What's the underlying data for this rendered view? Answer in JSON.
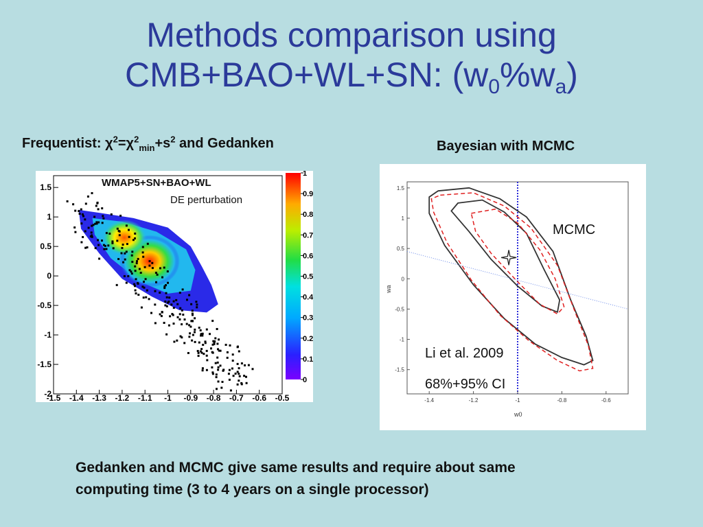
{
  "title": {
    "line1": "Methods comparison using",
    "line2_main": "CMB+BAO+WL+SN: (w",
    "line2_sub0": "0",
    "line2_mid": "%w",
    "line2_suba": "a",
    "line2_end": ")"
  },
  "left_label": {
    "part1": "Frequentist: χ",
    "sup1": "2",
    "part2": "=χ",
    "sup2": "2",
    "sub2": "min",
    "part3": "+s",
    "sup3": "2",
    "part4": " and Gedanken"
  },
  "right_label": "Bayesian with MCMC",
  "conclusion": {
    "line1": "Gedanken and MCMC give same results and require about same",
    "line2": "computing time (3 to 4 years on a single processor)"
  },
  "chart_data": [
    {
      "type": "heatmap",
      "annotations": [
        "WMAP5+SN+BAO+WL",
        "DE perturbation"
      ],
      "x_ticks": [
        "-1.5",
        "-1.4",
        "-1.3",
        "-1.2",
        "-1.1",
        "-1",
        "-0.9",
        "-0.8",
        "-0.7",
        "-0.6",
        "-0.5"
      ],
      "y_ticks": [
        "1.5",
        "1",
        "0.5",
        "0",
        "-0.5",
        "-1",
        "-1.5",
        "-2"
      ],
      "xlim": [
        -1.5,
        -0.5
      ],
      "ylim": [
        -2,
        1.7
      ],
      "colorbar_ticks": [
        "1",
        "0.9",
        "0.8",
        "0.7",
        "0.6",
        "0.5",
        "0.4",
        "0.3",
        "0.2",
        "0.1",
        "0"
      ],
      "colorbar_range": [
        0,
        1
      ],
      "peak": {
        "x": -1.08,
        "y": 0.25
      },
      "secondary_peak": {
        "x": -1.19,
        "y": 0.65
      },
      "scatter_note": "black points scattered around the likelihood region"
    },
    {
      "type": "line",
      "xlabel": "w0",
      "ylabel": "wa",
      "x_ticks": [
        "-1.4",
        "-1.2",
        "-1",
        "-0.8",
        "-0.6"
      ],
      "y_ticks": [
        "1.5",
        "1",
        "0.5",
        "0",
        "-0.5",
        "-1",
        "-1.5"
      ],
      "xlim": [
        -1.5,
        -0.5
      ],
      "ylim": [
        -1.9,
        1.6
      ],
      "best_fit": {
        "x": -1.04,
        "y": 0.35
      },
      "vertical_line_x": -1,
      "annotations": [
        "MCMC",
        "Li et al. 2009",
        "68%+95% CI"
      ],
      "series": [
        {
          "style": "solid-black",
          "points": [
            [
              -1.36,
              1.45
            ],
            [
              -1.22,
              1.5
            ],
            [
              -1.08,
              1.32
            ],
            [
              -0.96,
              1.02
            ],
            [
              -0.84,
              0.45
            ],
            [
              -0.76,
              -0.35
            ],
            [
              -0.69,
              -0.95
            ],
            [
              -0.66,
              -1.35
            ],
            [
              -0.7,
              -1.42
            ],
            [
              -0.8,
              -1.3
            ],
            [
              -0.92,
              -1.08
            ],
            [
              -1.06,
              -0.66
            ],
            [
              -1.2,
              -0.1
            ],
            [
              -1.33,
              0.55
            ],
            [
              -1.4,
              1.08
            ],
            [
              -1.4,
              1.35
            ]
          ]
        },
        {
          "style": "solid-black",
          "points": [
            [
              -1.27,
              1.25
            ],
            [
              -1.16,
              1.3
            ],
            [
              -1.06,
              1.1
            ],
            [
              -0.96,
              0.75
            ],
            [
              -0.88,
              0.15
            ],
            [
              -0.81,
              -0.35
            ],
            [
              -0.82,
              -0.55
            ],
            [
              -0.89,
              -0.45
            ],
            [
              -1.0,
              -0.12
            ],
            [
              -1.12,
              0.32
            ],
            [
              -1.22,
              0.78
            ],
            [
              -1.3,
              1.12
            ]
          ]
        },
        {
          "style": "dashed-red",
          "points": [
            [
              -1.35,
              1.38
            ],
            [
              -1.2,
              1.42
            ],
            [
              -1.06,
              1.2
            ],
            [
              -0.94,
              0.84
            ],
            [
              -0.82,
              0.22
            ],
            [
              -0.74,
              -0.55
            ],
            [
              -0.68,
              -1.1
            ],
            [
              -0.66,
              -1.48
            ],
            [
              -0.72,
              -1.52
            ],
            [
              -0.82,
              -1.35
            ],
            [
              -0.95,
              -1.02
            ],
            [
              -1.08,
              -0.6
            ],
            [
              -1.21,
              -0.02
            ],
            [
              -1.32,
              0.6
            ],
            [
              -1.38,
              1.1
            ],
            [
              -1.39,
              1.32
            ]
          ]
        },
        {
          "style": "dashed-red",
          "points": [
            [
              -1.21,
              1.08
            ],
            [
              -1.1,
              1.15
            ],
            [
              -1.0,
              0.92
            ],
            [
              -0.9,
              0.48
            ],
            [
              -0.83,
              0.0
            ],
            [
              -0.79,
              -0.46
            ],
            [
              -0.82,
              -0.58
            ],
            [
              -0.9,
              -0.42
            ],
            [
              -1.0,
              -0.05
            ],
            [
              -1.12,
              0.42
            ],
            [
              -1.19,
              0.78
            ]
          ]
        },
        {
          "style": "dotted-blue",
          "points": [
            [
              -1.5,
              0.45
            ],
            [
              -0.5,
              -0.5
            ]
          ]
        }
      ]
    }
  ]
}
